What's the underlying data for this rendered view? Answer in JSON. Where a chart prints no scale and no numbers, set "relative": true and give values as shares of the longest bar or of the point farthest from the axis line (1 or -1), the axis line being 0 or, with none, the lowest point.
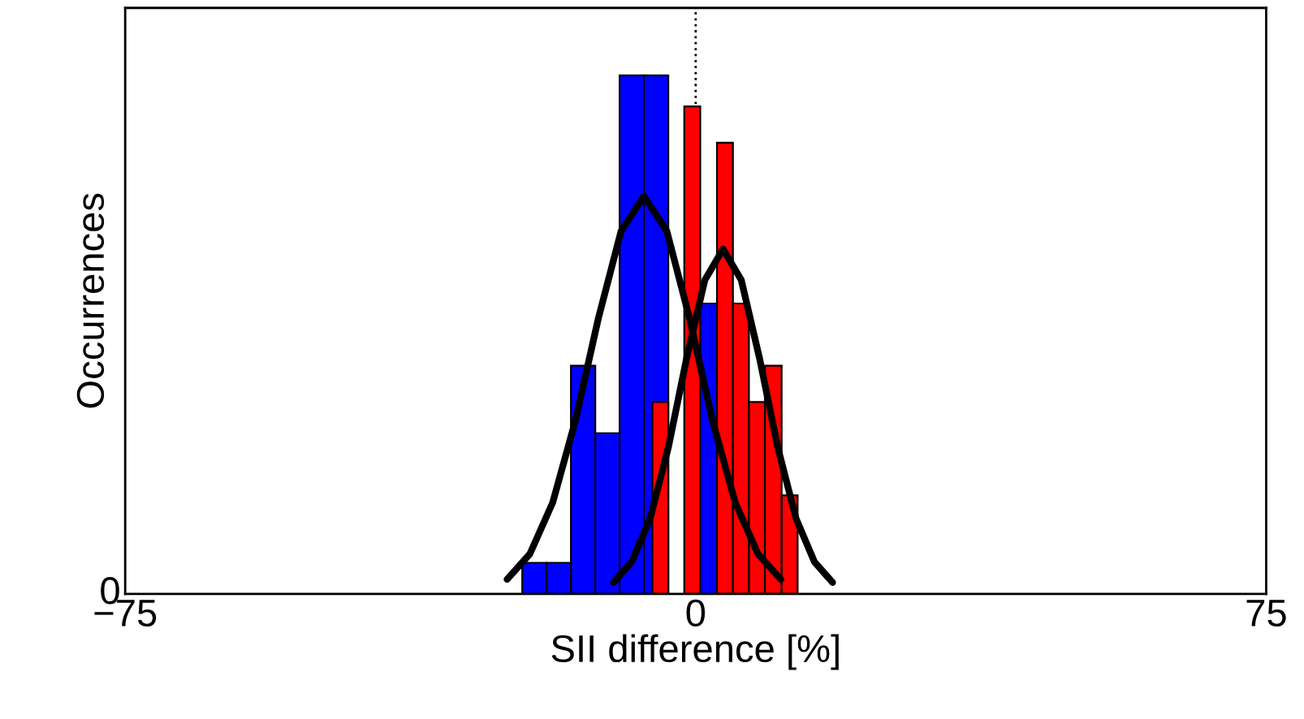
{
  "chart_data": {
    "type": "histogram",
    "relative": true,
    "xlabel": "SII difference [%]",
    "ylabel": "Occurrences",
    "xlim": [
      -75,
      75
    ],
    "xticks": [
      {
        "value": -75,
        "label": "−75"
      },
      0,
      75
    ],
    "annotations": [
      "0"
    ],
    "ref_lines": [
      {
        "axis": "x",
        "value": 0,
        "color": "#000000",
        "line_style": "dotted"
      }
    ],
    "series": [
      {
        "color": "#0000ff",
        "bins": [
          -22.8,
          -19.6,
          -16.4,
          -13.2,
          -10.0,
          -6.8,
          -3.6,
          -0.4,
          2.8
        ],
        "values": [
          0.06,
          0.06,
          0.44,
          0.31,
          1,
          1,
          0,
          0.56
        ]
      },
      {
        "color": "#ff0000",
        "bins": [
          -5.7,
          -3.6,
          -1.5,
          0.6,
          2.8,
          4.9,
          7.0,
          9.1,
          11.3,
          13.4
        ],
        "values": [
          0.37,
          0,
          0.94,
          0,
          0.87,
          0.56,
          0.37,
          0.44,
          0.19
        ]
      },
      {
        "type": "line",
        "color": "#000000",
        "x": [
          -24.8,
          -21.8,
          -18.8,
          -15.8,
          -12.8,
          -9.8,
          -6.8,
          -3.8,
          -0.8,
          2.2,
          5.2,
          8.2,
          11.2
        ],
        "values": [
          0.028,
          0.077,
          0.176,
          0.335,
          0.531,
          0.7,
          0.767,
          0.7,
          0.531,
          0.335,
          0.176,
          0.077,
          0.028
        ]
      },
      {
        "type": "line",
        "color": "#000000",
        "x": [
          -10.8,
          -8.4,
          -6.0,
          -3.6,
          -1.2,
          1.2,
          3.6,
          6.0,
          8.4,
          10.8,
          13.2,
          15.6,
          18.0
        ],
        "values": [
          0.022,
          0.062,
          0.145,
          0.282,
          0.454,
          0.605,
          0.665,
          0.605,
          0.454,
          0.282,
          0.145,
          0.062,
          0.022
        ]
      }
    ],
    "grid": false,
    "legend": false
  }
}
